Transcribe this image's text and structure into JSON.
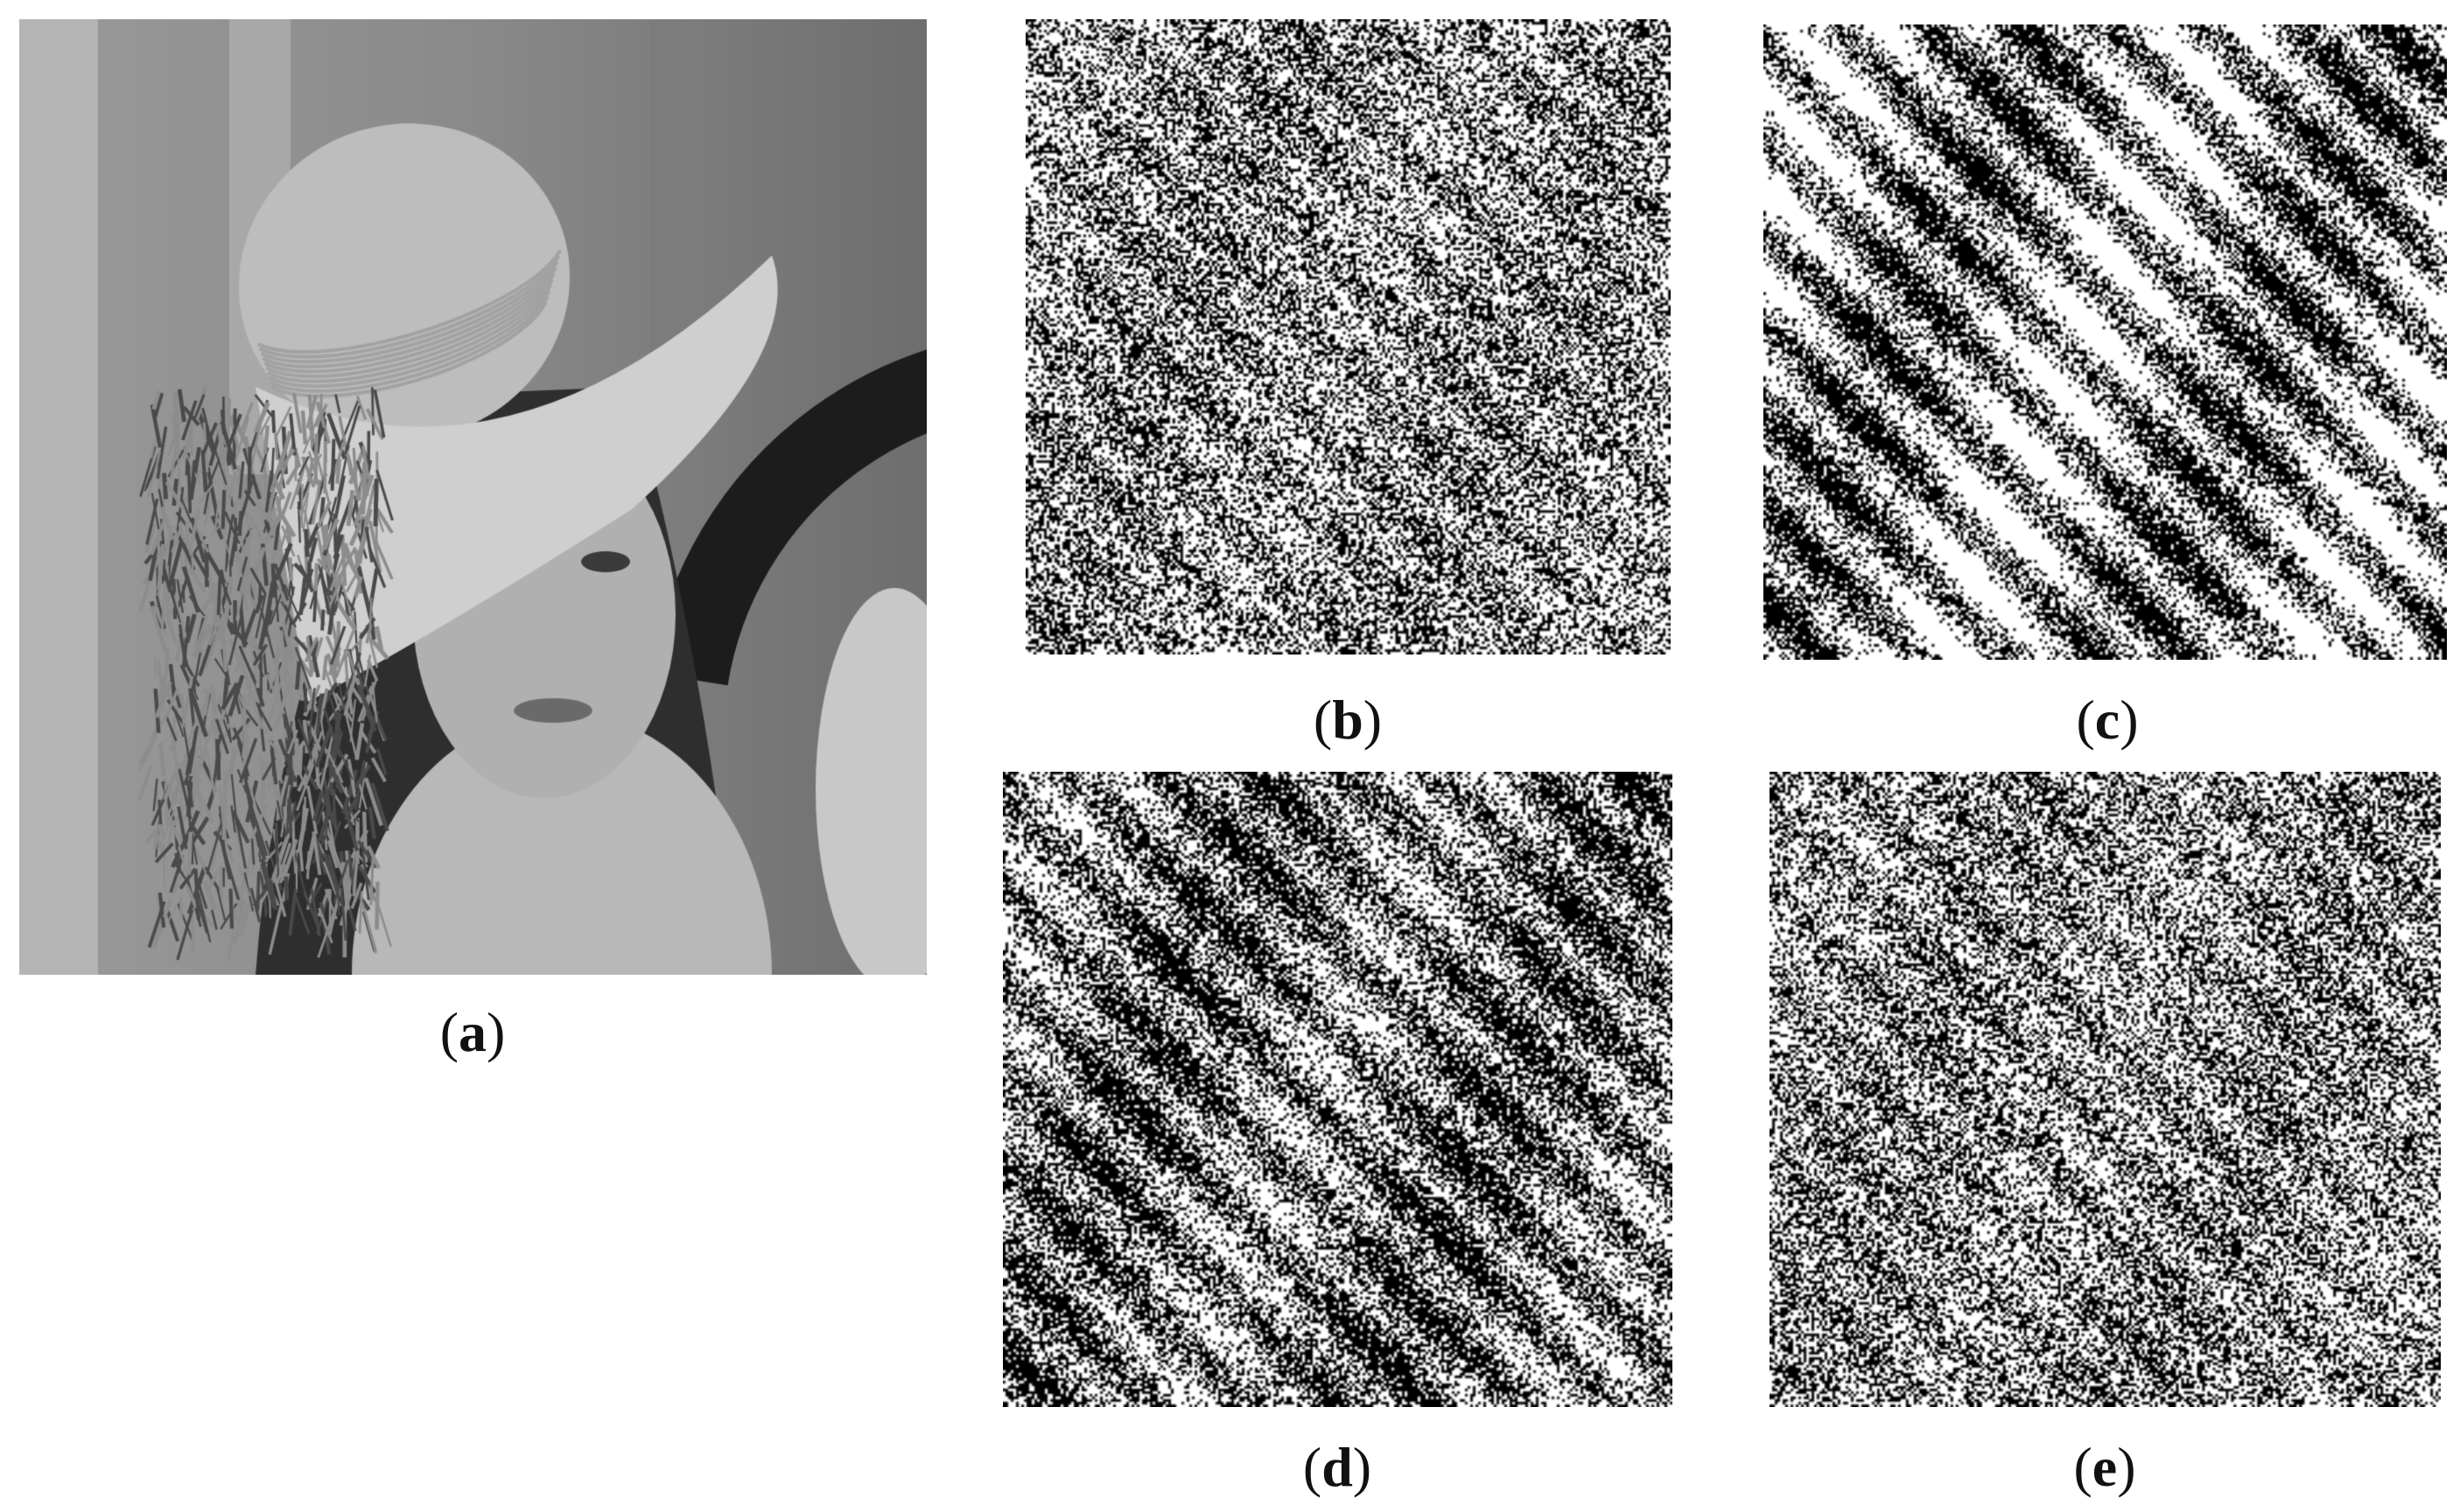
{
  "panels": [
    {
      "id": "a",
      "open": "(",
      "letter": "a",
      "close": ")",
      "content": "grayscale photograph of a woman wearing a wide-brimmed hat"
    },
    {
      "id": "b",
      "open": "(",
      "letter": "b",
      "close": ")",
      "content": "binary bit-plane pattern, fine noise-like texture"
    },
    {
      "id": "c",
      "open": "(",
      "letter": "c",
      "close": ")",
      "content": "binary bit-plane pattern with visible structure"
    },
    {
      "id": "d",
      "open": "(",
      "letter": "d",
      "close": ")",
      "content": "binary bit-plane pattern, mid-level texture"
    },
    {
      "id": "e",
      "open": "(",
      "letter": "e",
      "close": ")",
      "content": "binary bit-plane pattern, fine noise-like texture"
    }
  ],
  "colors": {
    "background": "#ffffff",
    "ink": "#111111"
  }
}
